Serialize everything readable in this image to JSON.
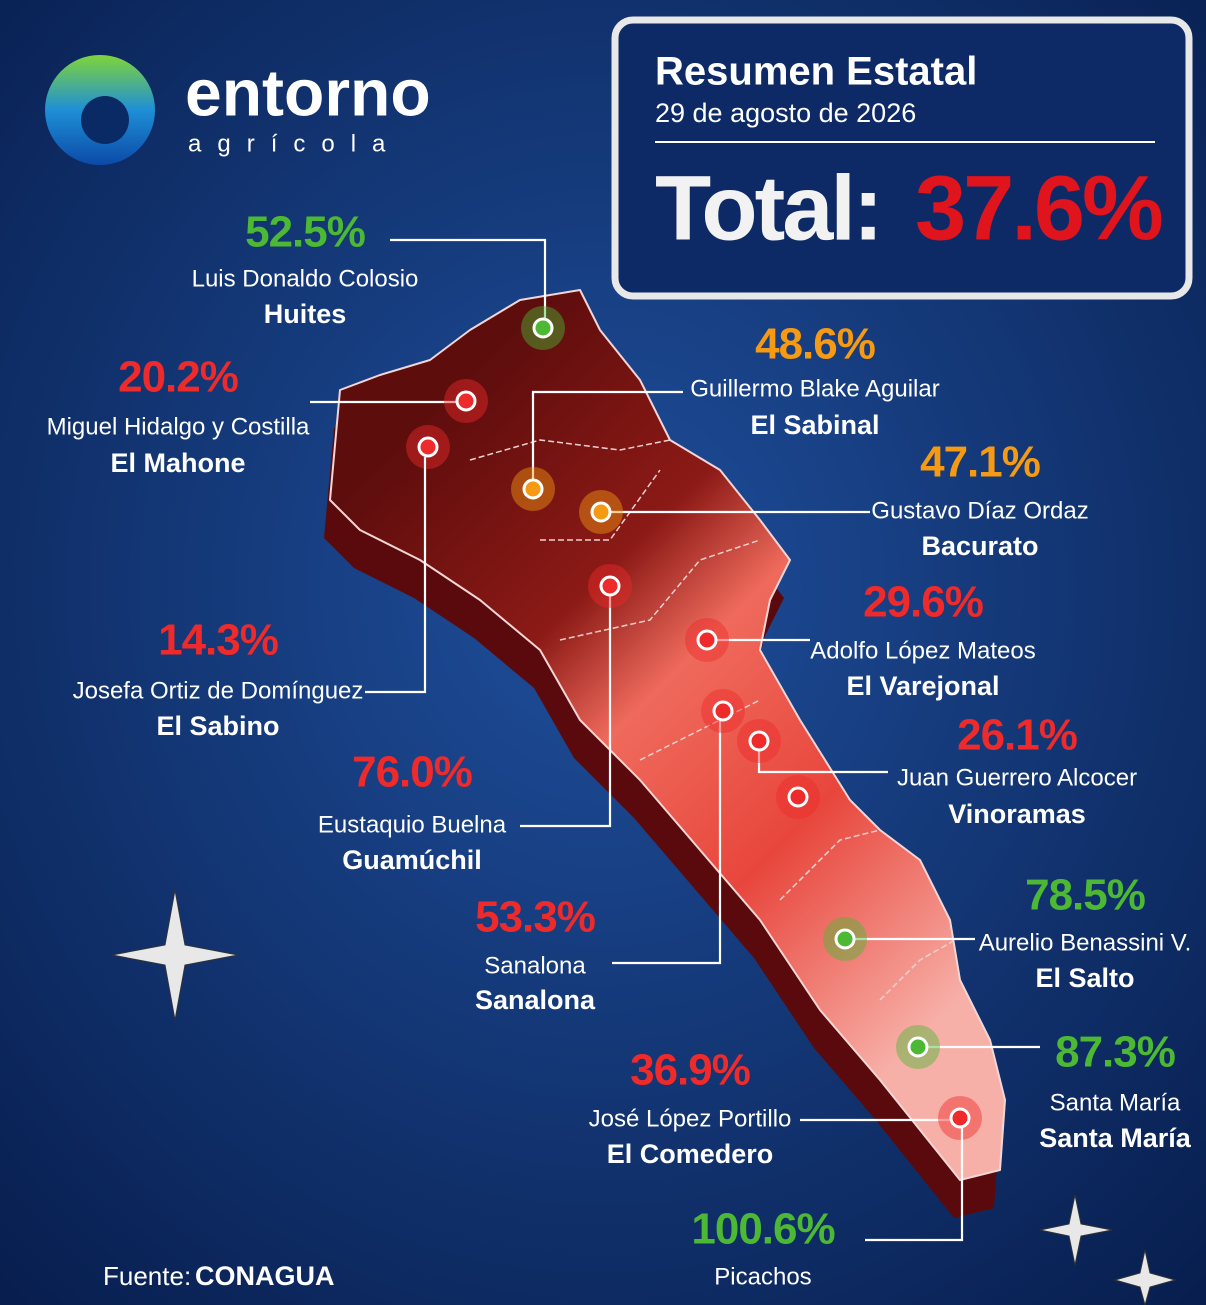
{
  "header": {
    "brand": "entorno",
    "brand_sub": "agrícola"
  },
  "summary": {
    "title": "Resumen Estatal",
    "date": "29 de agosto de 2026",
    "total_label": "Total:",
    "total_value": "37.6%",
    "total_color": "#e0141c"
  },
  "dams": [
    {
      "percent": "52.5%",
      "color": "#4cb833",
      "name": "Luis Donaldo Colosio",
      "short": "Huites"
    },
    {
      "percent": "20.2%",
      "color": "#ee2a2a",
      "name": "Miguel Hidalgo y Costilla",
      "short": "El Mahone"
    },
    {
      "percent": "48.6%",
      "color": "#f59a12",
      "name": "Guillermo Blake Aguilar",
      "short": "El Sabinal"
    },
    {
      "percent": "47.1%",
      "color": "#f59a12",
      "name": "Gustavo Díaz Ordaz",
      "short": "Bacurato"
    },
    {
      "percent": "14.3%",
      "color": "#ee2a2a",
      "name": "Josefa Ortiz de Domínguez",
      "short": "El Sabino"
    },
    {
      "percent": "29.6%",
      "color": "#ee2a2a",
      "name": "Adolfo López Mateos",
      "short": "El Varejonal"
    },
    {
      "percent": "76.0%",
      "color": "#ee2a2a",
      "name": "Eustaquio Buelna",
      "short": "Guamúchil"
    },
    {
      "percent": "26.1%",
      "color": "#ee2a2a",
      "name": "Juan Guerrero Alcocer",
      "short": "Vinoramas"
    },
    {
      "percent": "53.3%",
      "color": "#ee2a2a",
      "name": "Sanalona",
      "short": "Sanalona"
    },
    {
      "percent": "78.5%",
      "color": "#4cb833",
      "name": "Aurelio Benassini V.",
      "short": "El Salto"
    },
    {
      "percent": "36.9%",
      "color": "#ee2a2a",
      "name": "José López Portillo",
      "short": "El Comedero"
    },
    {
      "percent": "87.3%",
      "color": "#4cb833",
      "name": "Santa María",
      "short": "Santa María"
    },
    {
      "percent": "100.6%",
      "color": "#4cb833",
      "name": "Picachos"
    }
  ],
  "footer": {
    "label": "Fuente:",
    "source": "CONAGUA"
  }
}
